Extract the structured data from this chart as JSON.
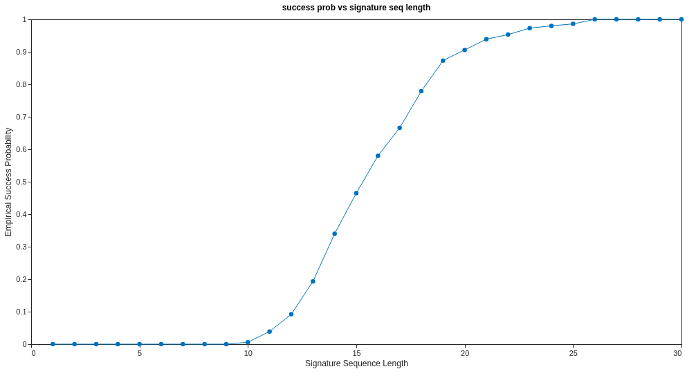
{
  "chart_data": {
    "type": "line",
    "title": "success prob vs signature seq length",
    "xlabel": "Signature Sequence Length",
    "ylabel": "Empirical Success Probability",
    "x": [
      1,
      2,
      3,
      4,
      5,
      6,
      7,
      8,
      9,
      10,
      11,
      12,
      13,
      14,
      15,
      16,
      17,
      18,
      19,
      20,
      21,
      22,
      23,
      24,
      25,
      26,
      27,
      28,
      29,
      30
    ],
    "series": [
      {
        "color": "#0072bd",
        "values": [
          0,
          0,
          0,
          0,
          0,
          0,
          0,
          0,
          0,
          0.006,
          0.039,
          0.092,
          0.193,
          0.34,
          0.465,
          0.58,
          0.666,
          0.779,
          0.873,
          0.906,
          0.939,
          0.953,
          0.973,
          0.98,
          0.986,
          1,
          1,
          1,
          1,
          1
        ]
      }
    ],
    "xlim": [
      0,
      30
    ],
    "xticks": [
      0,
      5,
      10,
      15,
      20,
      25,
      30
    ],
    "ylim": [
      0,
      1
    ],
    "yticks": [
      0,
      0.1,
      0.2,
      0.3,
      0.4,
      0.5,
      0.6,
      0.7,
      0.8,
      0.9,
      1
    ],
    "grid": false,
    "marker": "circle",
    "line_style": "solid"
  }
}
